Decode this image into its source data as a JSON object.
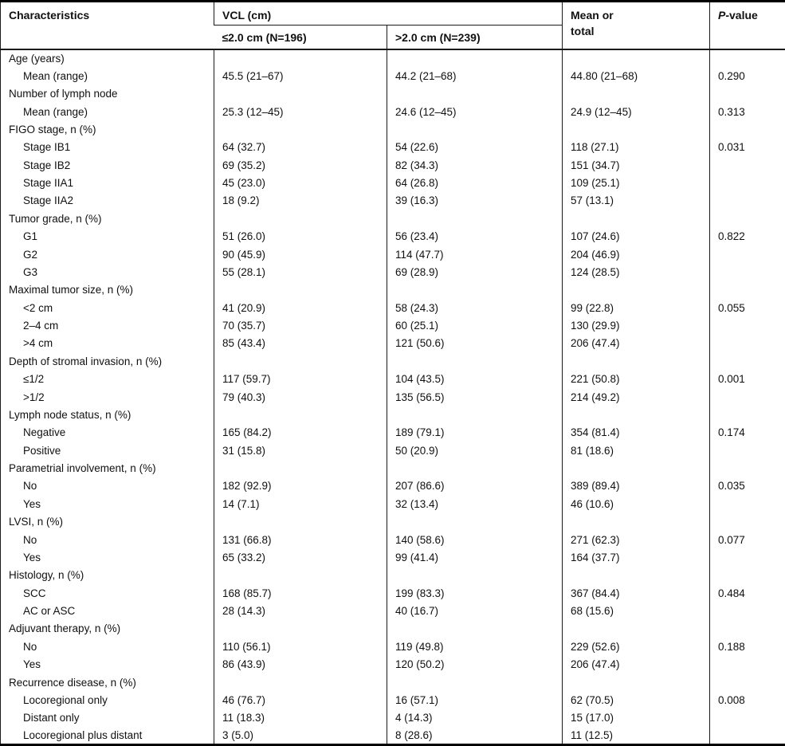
{
  "table": {
    "header": {
      "characteristics": "Characteristics",
      "vcl_group": "VCL (cm)",
      "col_le": "≤2.0 cm (N=196)",
      "col_gt": ">2.0 cm (N=239)",
      "mean_or_total": "Mean or total",
      "p_italic": "P",
      "p_rest": "-value"
    },
    "rows": [
      {
        "label": "Age (years)",
        "indent": 0,
        "le": "",
        "gt": "",
        "total": "",
        "p": ""
      },
      {
        "label": "Mean (range)",
        "indent": 1,
        "le": "45.5 (21–67)",
        "gt": "44.2 (21–68)",
        "total": "44.80 (21–68)",
        "p": "0.290"
      },
      {
        "label": "Number of lymph node",
        "indent": 0,
        "le": "",
        "gt": "",
        "total": "",
        "p": ""
      },
      {
        "label": "Mean (range)",
        "indent": 1,
        "le": "25.3 (12–45)",
        "gt": "24.6 (12–45)",
        "total": "24.9 (12–45)",
        "p": "0.313"
      },
      {
        "label": "FIGO stage, n (%)",
        "indent": 0,
        "le": "",
        "gt": "",
        "total": "",
        "p": ""
      },
      {
        "label": "Stage IB1",
        "indent": 1,
        "le": "64 (32.7)",
        "gt": "54 (22.6)",
        "total": "118 (27.1)",
        "p": "0.031"
      },
      {
        "label": "Stage IB2",
        "indent": 1,
        "le": "69 (35.2)",
        "gt": "82 (34.3)",
        "total": "151 (34.7)",
        "p": ""
      },
      {
        "label": "Stage IIA1",
        "indent": 1,
        "le": "45 (23.0)",
        "gt": "64 (26.8)",
        "total": "109 (25.1)",
        "p": ""
      },
      {
        "label": "Stage IIA2",
        "indent": 1,
        "le": "18 (9.2)",
        "gt": "39 (16.3)",
        "total": "57 (13.1)",
        "p": ""
      },
      {
        "label": "Tumor grade, n (%)",
        "indent": 0,
        "le": "",
        "gt": "",
        "total": "",
        "p": ""
      },
      {
        "label": "G1",
        "indent": 1,
        "le": "51 (26.0)",
        "gt": "56 (23.4)",
        "total": "107 (24.6)",
        "p": "0.822"
      },
      {
        "label": "G2",
        "indent": 1,
        "le": "90 (45.9)",
        "gt": "114 (47.7)",
        "total": "204 (46.9)",
        "p": ""
      },
      {
        "label": "G3",
        "indent": 1,
        "le": "55 (28.1)",
        "gt": "69 (28.9)",
        "total": "124 (28.5)",
        "p": ""
      },
      {
        "label": "Maximal tumor size, n (%)",
        "indent": 0,
        "le": "",
        "gt": "",
        "total": "",
        "p": ""
      },
      {
        "label": "<2 cm",
        "indent": 1,
        "le": "41 (20.9)",
        "gt": "58 (24.3)",
        "total": "99 (22.8)",
        "p": "0.055"
      },
      {
        "label": "2–4 cm",
        "indent": 1,
        "le": "70 (35.7)",
        "gt": "60 (25.1)",
        "total": "130 (29.9)",
        "p": ""
      },
      {
        "label": ">4 cm",
        "indent": 1,
        "le": "85 (43.4)",
        "gt": "121 (50.6)",
        "total": "206 (47.4)",
        "p": ""
      },
      {
        "label": "Depth of stromal invasion, n (%)",
        "indent": 0,
        "le": "",
        "gt": "",
        "total": "",
        "p": ""
      },
      {
        "label": "≤1/2",
        "indent": 1,
        "le": "117 (59.7)",
        "gt": "104 (43.5)",
        "total": "221 (50.8)",
        "p": "0.001"
      },
      {
        "label": ">1/2",
        "indent": 1,
        "le": "79 (40.3)",
        "gt": "135 (56.5)",
        "total": "214 (49.2)",
        "p": ""
      },
      {
        "label": "Lymph node status, n (%)",
        "indent": 0,
        "le": "",
        "gt": "",
        "total": "",
        "p": ""
      },
      {
        "label": "Negative",
        "indent": 1,
        "le": "165 (84.2)",
        "gt": "189 (79.1)",
        "total": "354 (81.4)",
        "p": "0.174"
      },
      {
        "label": "Positive",
        "indent": 1,
        "le": "31 (15.8)",
        "gt": "50 (20.9)",
        "total": "81 (18.6)",
        "p": ""
      },
      {
        "label": "Parametrial involvement, n (%)",
        "indent": 0,
        "le": "",
        "gt": "",
        "total": "",
        "p": ""
      },
      {
        "label": "No",
        "indent": 1,
        "le": "182 (92.9)",
        "gt": "207 (86.6)",
        "total": "389 (89.4)",
        "p": "0.035"
      },
      {
        "label": "Yes",
        "indent": 1,
        "le": "14 (7.1)",
        "gt": "32 (13.4)",
        "total": "46 (10.6)",
        "p": ""
      },
      {
        "label": "LVSI, n (%)",
        "indent": 0,
        "le": "",
        "gt": "",
        "total": "",
        "p": ""
      },
      {
        "label": "No",
        "indent": 1,
        "le": "131 (66.8)",
        "gt": "140 (58.6)",
        "total": "271 (62.3)",
        "p": "0.077"
      },
      {
        "label": "Yes",
        "indent": 1,
        "le": "65 (33.2)",
        "gt": "99 (41.4)",
        "total": "164 (37.7)",
        "p": ""
      },
      {
        "label": "Histology, n (%)",
        "indent": 0,
        "le": "",
        "gt": "",
        "total": "",
        "p": ""
      },
      {
        "label": "SCC",
        "indent": 1,
        "le": "168 (85.7)",
        "gt": "199 (83.3)",
        "total": "367 (84.4)",
        "p": "0.484"
      },
      {
        "label": "AC or ASC",
        "indent": 1,
        "le": "28 (14.3)",
        "gt": "40 (16.7)",
        "total": "68 (15.6)",
        "p": ""
      },
      {
        "label": "Adjuvant therapy, n (%)",
        "indent": 0,
        "le": "",
        "gt": "",
        "total": "",
        "p": ""
      },
      {
        "label": "No",
        "indent": 1,
        "le": "110 (56.1)",
        "gt": "119 (49.8)",
        "total": "229 (52.6)",
        "p": "0.188"
      },
      {
        "label": "Yes",
        "indent": 1,
        "le": "86 (43.9)",
        "gt": "120 (50.2)",
        "total": "206 (47.4)",
        "p": ""
      },
      {
        "label": "Recurrence disease, n (%)",
        "indent": 0,
        "le": "",
        "gt": "",
        "total": "",
        "p": ""
      },
      {
        "label": "Locoregional only",
        "indent": 1,
        "le": "46 (76.7)",
        "gt": "16 (57.1)",
        "total": "62 (70.5)",
        "p": "0.008"
      },
      {
        "label": "Distant only",
        "indent": 1,
        "le": "11 (18.3)",
        "gt": "4 (14.3)",
        "total": "15 (17.0)",
        "p": ""
      },
      {
        "label": "Locoregional plus distant",
        "indent": 1,
        "le": "3 (5.0)",
        "gt": "8 (28.6)",
        "total": "11 (12.5)",
        "p": ""
      }
    ]
  }
}
